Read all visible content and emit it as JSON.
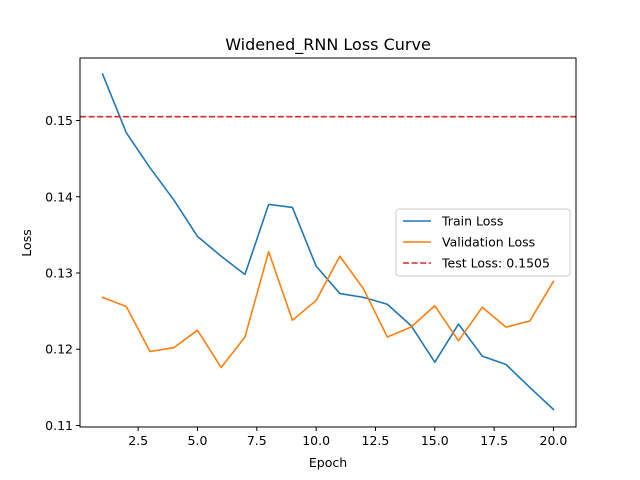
{
  "chart_data": {
    "type": "line",
    "title": "Widened_RNN Loss Curve",
    "xlabel": "Epoch",
    "ylabel": "Loss",
    "xlim": [
      0.05,
      20.95
    ],
    "ylim": [
      0.1098,
      0.1582
    ],
    "x_ticks": [
      2.5,
      5.0,
      7.5,
      10.0,
      12.5,
      15.0,
      17.5,
      20.0
    ],
    "x_tick_labels": [
      "2.5",
      "5.0",
      "7.5",
      "10.0",
      "12.5",
      "15.0",
      "17.5",
      "20.0"
    ],
    "y_ticks": [
      0.11,
      0.12,
      0.13,
      0.14,
      0.15
    ],
    "y_tick_labels": [
      "0.11",
      "0.12",
      "0.13",
      "0.14",
      "0.15"
    ],
    "grid": false,
    "legend_position": "center-right",
    "x": [
      1,
      2,
      3,
      4,
      5,
      6,
      7,
      8,
      9,
      10,
      11,
      12,
      13,
      14,
      15,
      16,
      17,
      18,
      19,
      20
    ],
    "series": [
      {
        "name": "Train Loss",
        "color": "#1f77b4",
        "style": "solid",
        "values": [
          0.1561,
          0.1484,
          0.1438,
          0.1396,
          0.1348,
          0.1322,
          0.1298,
          0.139,
          0.1386,
          0.1309,
          0.1273,
          0.1268,
          0.1259,
          0.1231,
          0.1183,
          0.1233,
          0.1191,
          0.118,
          0.115,
          0.1121
        ]
      },
      {
        "name": "Validation Loss",
        "color": "#ff7f0e",
        "style": "solid",
        "values": [
          0.1268,
          0.1256,
          0.1197,
          0.1202,
          0.1225,
          0.1176,
          0.1216,
          0.1328,
          0.1238,
          0.1264,
          0.1322,
          0.1279,
          0.1216,
          0.1229,
          0.1257,
          0.1211,
          0.1255,
          0.1229,
          0.1237,
          0.1289
        ]
      },
      {
        "name": "Test Loss: 0.1505",
        "color": "#d62728",
        "style": "dashed",
        "type": "hline",
        "value": 0.1505
      }
    ]
  }
}
